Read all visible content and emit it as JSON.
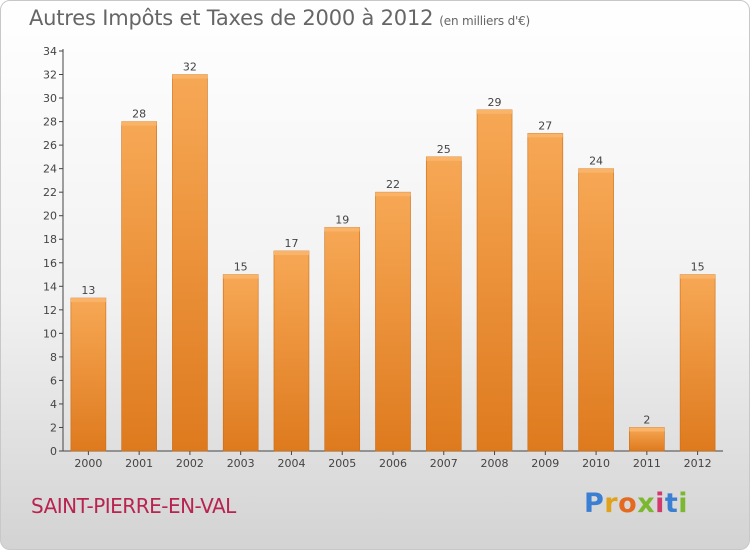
{
  "header": {
    "title": "Autres Impôts et Taxes de 2000 à 2012",
    "unit": "(en milliers d'€)"
  },
  "footer": {
    "commune": "SAINT-PIERRE-EN-VAL",
    "logo_letters": [
      "P",
      "r",
      "o",
      "x",
      "i",
      "t",
      "i"
    ]
  },
  "colors": {
    "bar_light": "#f7a855",
    "bar_dark": "#e07e22",
    "axis": "#444444",
    "commune": "#b8234f"
  },
  "chart_data": {
    "type": "bar",
    "title": "Autres Impôts et Taxes de 2000 à 2012",
    "subtitle": "(en milliers d'€)",
    "categories": [
      "2000",
      "2001",
      "2002",
      "2003",
      "2004",
      "2005",
      "2006",
      "2007",
      "2008",
      "2009",
      "2010",
      "2011",
      "2012"
    ],
    "values": [
      13,
      28,
      32,
      15,
      17,
      19,
      22,
      25,
      29,
      27,
      24,
      2,
      15
    ],
    "ylim": [
      0,
      34
    ],
    "yticks": [
      0,
      2,
      4,
      6,
      8,
      10,
      12,
      14,
      16,
      18,
      20,
      22,
      24,
      26,
      28,
      30,
      32,
      34
    ],
    "grid": false,
    "data_labels": true
  }
}
